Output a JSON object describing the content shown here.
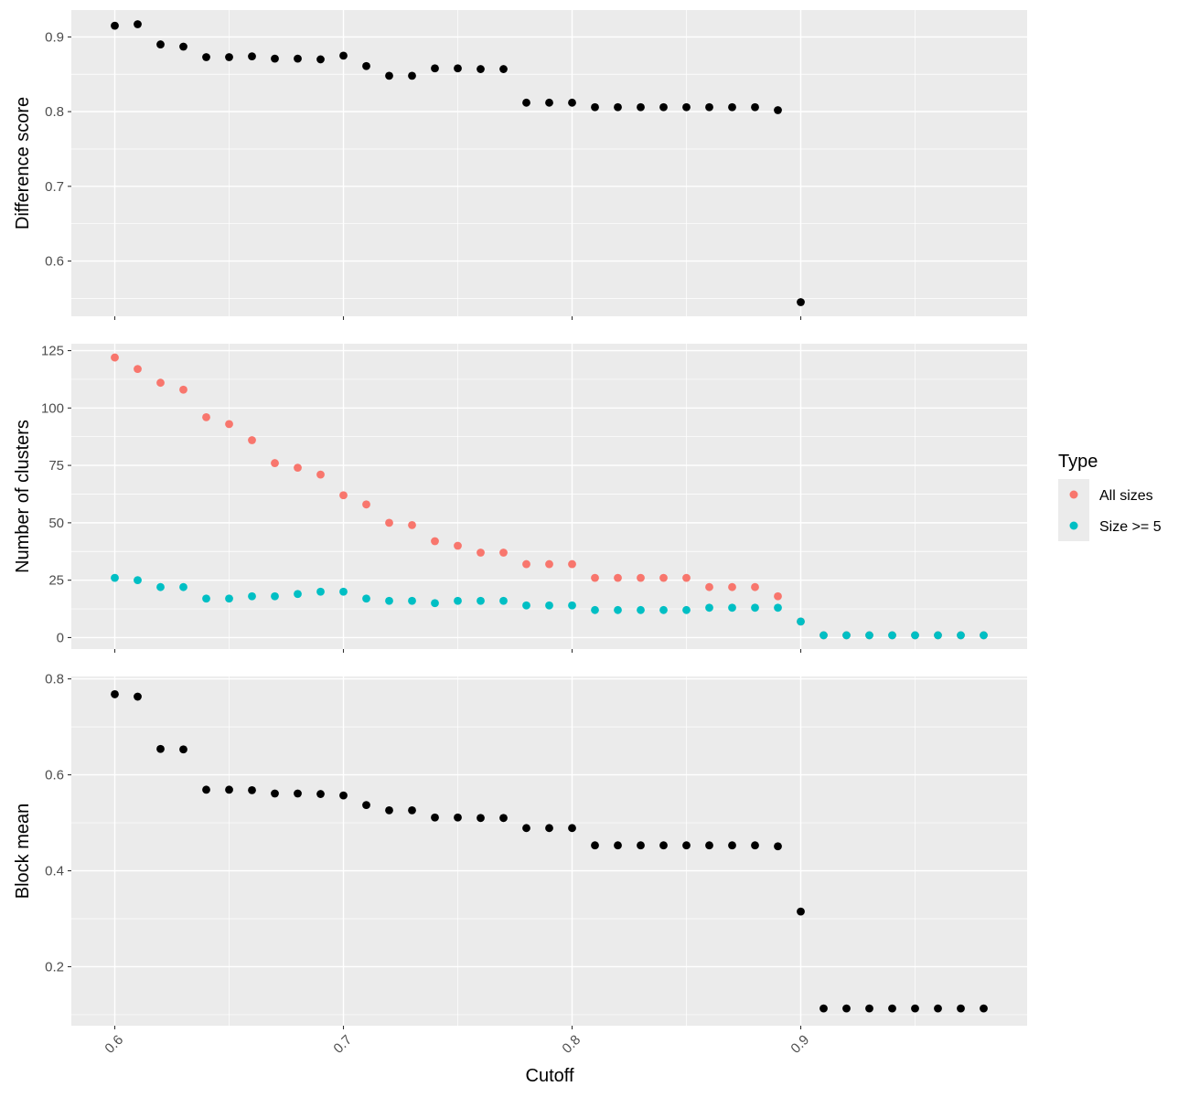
{
  "chart_data": [
    {
      "type": "scatter",
      "ylabel": "Difference score",
      "xlim": [
        0.581,
        0.999
      ],
      "ylim": [
        0.526,
        0.936
      ],
      "y_ticks": [
        0.6,
        0.7,
        0.8,
        0.9
      ],
      "grid": true,
      "x": [
        0.6,
        0.61,
        0.62,
        0.63,
        0.64,
        0.65,
        0.66,
        0.67,
        0.68,
        0.69,
        0.7,
        0.71,
        0.72,
        0.73,
        0.74,
        0.75,
        0.76,
        0.77,
        0.78,
        0.79,
        0.8,
        0.81,
        0.82,
        0.83,
        0.84,
        0.85,
        0.86,
        0.87,
        0.88,
        0.89,
        0.9
      ],
      "values": [
        0.915,
        0.917,
        0.89,
        0.887,
        0.873,
        0.873,
        0.874,
        0.871,
        0.871,
        0.87,
        0.875,
        0.861,
        0.848,
        0.848,
        0.858,
        0.858,
        0.857,
        0.857,
        0.812,
        0.812,
        0.812,
        0.806,
        0.806,
        0.806,
        0.806,
        0.806,
        0.806,
        0.806,
        0.806,
        0.802,
        0.545
      ]
    },
    {
      "type": "scatter",
      "ylabel": "Number of clusters",
      "xlim": [
        0.581,
        0.999
      ],
      "ylim": [
        -5,
        128
      ],
      "y_ticks": [
        0,
        25,
        50,
        75,
        100,
        125
      ],
      "grid": true,
      "legend": {
        "title": "Type",
        "position": "right"
      },
      "x": [
        0.6,
        0.61,
        0.62,
        0.63,
        0.64,
        0.65,
        0.66,
        0.67,
        0.68,
        0.69,
        0.7,
        0.71,
        0.72,
        0.73,
        0.74,
        0.75,
        0.76,
        0.77,
        0.78,
        0.79,
        0.8,
        0.81,
        0.82,
        0.83,
        0.84,
        0.85,
        0.86,
        0.87,
        0.88,
        0.89,
        0.9,
        0.91,
        0.92,
        0.93,
        0.94,
        0.95,
        0.96,
        0.97,
        0.98
      ],
      "series": [
        {
          "name": "All sizes",
          "color": "#F8766D",
          "values": [
            122,
            117,
            111,
            108,
            96,
            93,
            86,
            76,
            74,
            71,
            62,
            58,
            50,
            49,
            42,
            40,
            37,
            37,
            32,
            32,
            32,
            26,
            26,
            26,
            26,
            26,
            22,
            22,
            22,
            18,
            7,
            1,
            1,
            1,
            1,
            1,
            1,
            1,
            1
          ]
        },
        {
          "name": "Size >= 5",
          "color": "#00BFC4",
          "values": [
            26,
            25,
            22,
            22,
            17,
            17,
            18,
            18,
            19,
            20,
            20,
            17,
            16,
            16,
            15,
            16,
            16,
            16,
            14,
            14,
            14,
            12,
            12,
            12,
            12,
            12,
            13,
            13,
            13,
            13,
            7,
            1,
            1,
            1,
            1,
            1,
            1,
            1,
            1
          ]
        }
      ]
    },
    {
      "type": "scatter",
      "ylabel": "Block mean",
      "xlabel": "Cutoff",
      "xlim": [
        0.581,
        0.999
      ],
      "ylim": [
        0.077,
        0.805
      ],
      "x_ticks": [
        "0.6",
        "0.7",
        "0.8",
        "0.9"
      ],
      "y_ticks": [
        0.2,
        0.4,
        0.6,
        0.8
      ],
      "grid": true,
      "x": [
        0.6,
        0.61,
        0.62,
        0.63,
        0.64,
        0.65,
        0.66,
        0.67,
        0.68,
        0.69,
        0.7,
        0.71,
        0.72,
        0.73,
        0.74,
        0.75,
        0.76,
        0.77,
        0.78,
        0.79,
        0.8,
        0.81,
        0.82,
        0.83,
        0.84,
        0.85,
        0.86,
        0.87,
        0.88,
        0.89,
        0.9,
        0.91,
        0.92,
        0.93,
        0.94,
        0.95,
        0.96,
        0.97,
        0.98
      ],
      "values": [
        0.768,
        0.763,
        0.654,
        0.653,
        0.569,
        0.569,
        0.568,
        0.561,
        0.561,
        0.56,
        0.557,
        0.537,
        0.526,
        0.526,
        0.511,
        0.511,
        0.51,
        0.51,
        0.489,
        0.489,
        0.489,
        0.453,
        0.453,
        0.453,
        0.453,
        0.453,
        0.453,
        0.453,
        0.453,
        0.451,
        0.315,
        0.113,
        0.113,
        0.113,
        0.113,
        0.113,
        0.113,
        0.113,
        0.113
      ]
    }
  ],
  "colors": {
    "panel_background": "#EBEBEB",
    "grid": "#FFFFFF",
    "point": "#000000"
  }
}
